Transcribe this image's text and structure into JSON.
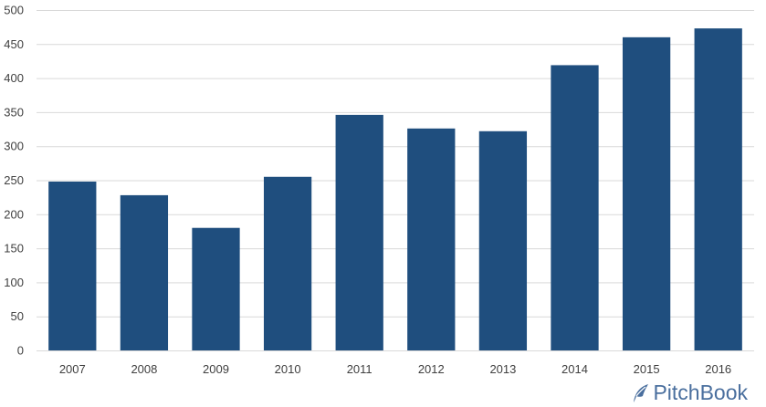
{
  "chart_data": {
    "type": "bar",
    "categories": [
      "2007",
      "2008",
      "2009",
      "2010",
      "2011",
      "2012",
      "2013",
      "2014",
      "2015",
      "2016"
    ],
    "values": [
      248,
      228,
      180,
      255,
      346,
      326,
      322,
      419,
      460,
      473
    ],
    "title": "",
    "xlabel": "",
    "ylabel": "",
    "ylim": [
      0,
      500
    ],
    "yticks": [
      "0",
      "50",
      "100",
      "150",
      "200",
      "250",
      "300",
      "350",
      "400",
      "450",
      "500"
    ],
    "grid": true,
    "legend": "none",
    "bar_color": "#1f4e7e",
    "grid_color": "#d9d9d9"
  },
  "branding": {
    "logo_text": "PitchBook",
    "logo_icon": "pitchbook-leaf-icon",
    "logo_color": "#4a6f9e"
  }
}
